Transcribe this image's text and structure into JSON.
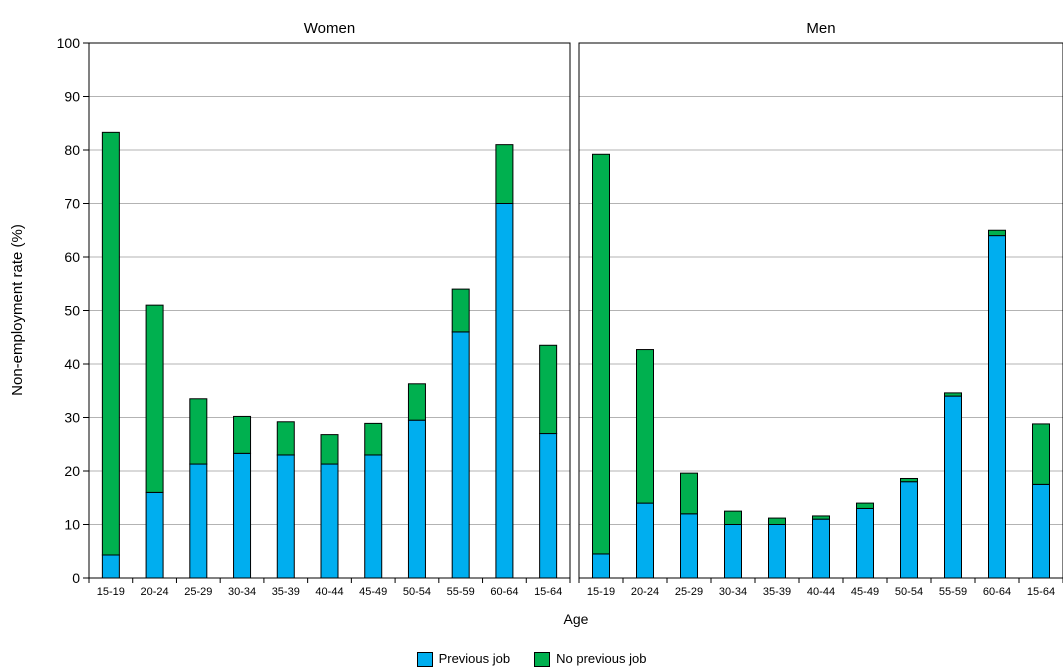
{
  "chart_data": [
    {
      "type": "bar",
      "stacked": true,
      "title": "Women",
      "categories": [
        "15-19",
        "20-24",
        "25-29",
        "30-34",
        "35-39",
        "40-44",
        "45-49",
        "50-54",
        "55-59",
        "60-64",
        "15-64"
      ],
      "series": [
        {
          "name": "Previous job",
          "color": "#00aeef",
          "values": [
            4.3,
            16.0,
            21.3,
            23.3,
            23.0,
            21.3,
            23.0,
            29.5,
            46.0,
            70.0,
            27.0
          ]
        },
        {
          "name": "No previous job",
          "color": "#00b04f",
          "values": [
            79.0,
            35.0,
            12.2,
            6.9,
            6.2,
            5.5,
            5.9,
            6.8,
            8.0,
            11.0,
            16.5
          ]
        }
      ],
      "ylim": [
        0,
        100
      ],
      "yticks": [
        0,
        10,
        20,
        30,
        40,
        50,
        60,
        70,
        80,
        90,
        100
      ],
      "grid": true
    },
    {
      "type": "bar",
      "stacked": true,
      "title": "Men",
      "categories": [
        "15-19",
        "20-24",
        "25-29",
        "30-34",
        "35-39",
        "40-44",
        "45-49",
        "50-54",
        "55-59",
        "60-64",
        "15-64"
      ],
      "series": [
        {
          "name": "Previous job",
          "color": "#00aeef",
          "values": [
            4.5,
            14.0,
            12.0,
            10.0,
            10.0,
            11.0,
            13.0,
            18.0,
            34.0,
            64.0,
            17.5
          ]
        },
        {
          "name": "No previous job",
          "color": "#00b04f",
          "values": [
            74.7,
            28.7,
            7.6,
            2.5,
            1.2,
            0.6,
            1.0,
            0.6,
            0.6,
            1.0,
            11.3
          ]
        }
      ],
      "ylim": [
        0,
        100
      ],
      "yticks": [
        0,
        10,
        20,
        30,
        40,
        50,
        60,
        70,
        80,
        90,
        100
      ],
      "grid": true
    }
  ],
  "axes": {
    "ylabel": "Non-employment rate (%)",
    "xlabel": "Age"
  },
  "legend": {
    "placement": "bottom",
    "items": [
      {
        "label": "Previous job",
        "color": "#00aeef"
      },
      {
        "label": "No previous job",
        "color": "#00b04f"
      }
    ]
  }
}
